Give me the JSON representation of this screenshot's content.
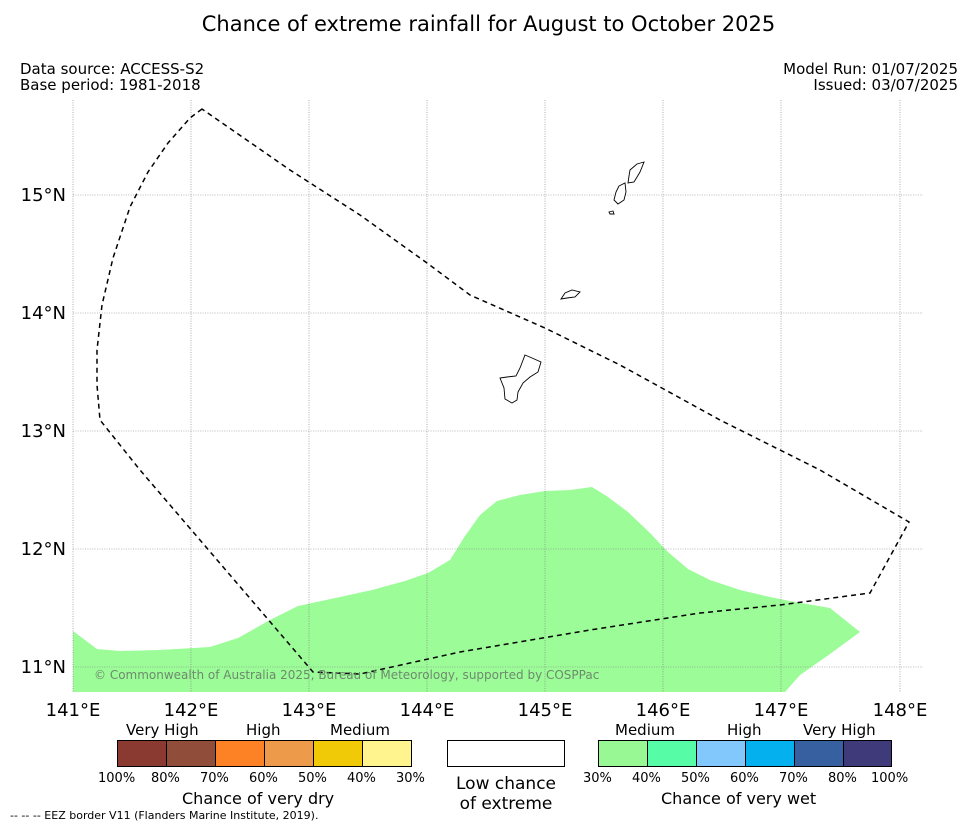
{
  "title": "Chance of extreme rainfall for August to October 2025",
  "meta": {
    "data_source": "Data source: ACCESS-S2",
    "base_period": "Base period: 1981-2018",
    "model_run": "Model Run: 01/07/2025",
    "issued": "Issued: 03/07/2025"
  },
  "map": {
    "lat_labels": [
      "15°N",
      "14°N",
      "13°N",
      "12°N",
      "11°N"
    ],
    "lon_labels": [
      "141°E",
      "142°E",
      "143°E",
      "144°E",
      "145°E",
      "146°E",
      "147°E",
      "148°E"
    ],
    "copyright": "© Commonwealth of Australia 2025, Bureau of Meteorology, supported by COSPPac",
    "shaded_category": "Medium chance of very wet",
    "shaded_color": "#9cfc98",
    "boundary_style": "dashed"
  },
  "legend": {
    "dry": {
      "title": "Chance of very dry",
      "categories": [
        "Very High",
        "High",
        "Medium"
      ],
      "colors": [
        "#8b3a32",
        "#8f4d3a",
        "#fd8125",
        "#ed9a4a",
        "#f1ca07",
        "#fff48e"
      ],
      "ticks": [
        "100%",
        "80%",
        "70%",
        "60%",
        "50%",
        "40%",
        "30%"
      ]
    },
    "neutral": {
      "label_line1": "Low chance",
      "label_line2": "of extreme",
      "color": "#ffffff"
    },
    "wet": {
      "title": "Chance of very wet",
      "categories": [
        "Medium",
        "High",
        "Very High"
      ],
      "colors": [
        "#98f893",
        "#57fda6",
        "#82c8fc",
        "#05b0ef",
        "#3660a0",
        "#3f3b7a"
      ],
      "ticks": [
        "30%",
        "40%",
        "50%",
        "60%",
        "70%",
        "80%",
        "100%"
      ]
    }
  },
  "footnote": "-- -- -- EEZ border V11 (Flanders Marine Institute, 2019)."
}
